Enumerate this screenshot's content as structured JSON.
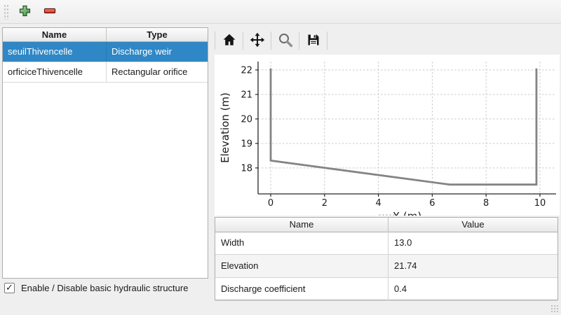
{
  "main_toolbar": {
    "add_icon": "plus-icon",
    "remove_icon": "minus-icon",
    "add_color": "#47a447",
    "remove_color": "#e03c2e"
  },
  "structures_table": {
    "columns": [
      "Name",
      "Type"
    ],
    "rows": [
      {
        "name": "seuilThivencelle",
        "type": "Discharge weir",
        "selected": true
      },
      {
        "name": "orficiceThivencelle",
        "type": "Rectangular orifice",
        "selected": false
      }
    ],
    "selection_color": "#2f87c5"
  },
  "enable_checkbox": {
    "label": "Enable / Disable basic hydraulic structure",
    "checked": true,
    "check_glyph": "✓"
  },
  "plot_toolbar": {
    "buttons": [
      "home",
      "pan",
      "zoom",
      "save"
    ]
  },
  "chart_data": {
    "type": "line",
    "title": "",
    "xlabel": "X (m)",
    "ylabel": "Elevation (m)",
    "x": [
      0,
      0,
      6.65,
      9.87,
      9.87
    ],
    "y": [
      22.06,
      18.3,
      17.32,
      17.32,
      22.06
    ],
    "xticks": [
      0,
      2,
      4,
      6,
      8,
      10
    ],
    "yticks": [
      18,
      19,
      20,
      21,
      22
    ],
    "xlim": [
      -0.47,
      10.6
    ],
    "ylim": [
      16.94,
      22.34
    ],
    "grid": true,
    "legend": false,
    "line_color": "#848484"
  },
  "params_table": {
    "columns": [
      "Name",
      "Value"
    ],
    "rows": [
      {
        "name": "Width",
        "value": "13.0"
      },
      {
        "name": "Elevation",
        "value": "21.74"
      },
      {
        "name": "Discharge coefficient",
        "value": "0.4"
      }
    ]
  }
}
